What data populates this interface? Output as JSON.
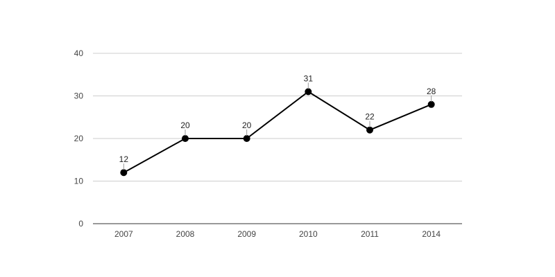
{
  "chart_data": {
    "type": "line",
    "title": "",
    "xlabel": "",
    "ylabel": "",
    "categories": [
      "2007",
      "2008",
      "2009",
      "2010",
      "2011",
      "2014"
    ],
    "series": [
      {
        "values": [
          12,
          20,
          20,
          31,
          22,
          28
        ]
      }
    ],
    "ylim": [
      0,
      40
    ],
    "yticks": [
      0,
      10,
      20,
      30,
      40
    ],
    "grid": true,
    "legend": "none",
    "data_labels": true,
    "colors": {
      "line": "#000000",
      "grid": "#cccccc",
      "axis": "#333333"
    }
  }
}
